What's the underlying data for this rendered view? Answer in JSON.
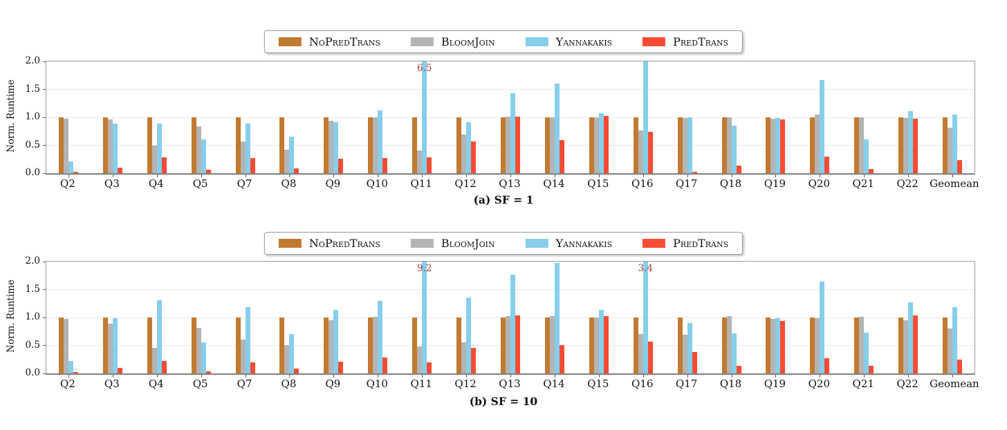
{
  "legend": [
    {
      "label": "NoPredTrans",
      "color": "#C17A30"
    },
    {
      "label": "BloomJoin",
      "color": "#B4B4B4"
    },
    {
      "label": "Yannakakis",
      "color": "#87CEEB"
    },
    {
      "label": "PredTrans",
      "color": "#F74C33"
    }
  ],
  "annotation_color": "#B0413A",
  "chart_data": [
    {
      "type": "bar",
      "title": "(a) SF = 1",
      "ylabel": "Norm. Runtime",
      "ylim": [
        0,
        2.0
      ],
      "yticks": [
        "0.0",
        "0.5",
        "1.0",
        "1.5",
        "2.0"
      ],
      "grid": "horizontal",
      "legend_position": "top-center",
      "categories": [
        "Q2",
        "Q3",
        "Q4",
        "Q5",
        "Q7",
        "Q8",
        "Q9",
        "Q10",
        "Q11",
        "Q12",
        "Q13",
        "Q14",
        "Q15",
        "Q16",
        "Q17",
        "Q18",
        "Q19",
        "Q20",
        "Q21",
        "Q22",
        "Geomean"
      ],
      "series": [
        {
          "name": "NoPredTrans",
          "values": [
            1.0,
            1.0,
            1.0,
            1.0,
            1.0,
            1.0,
            1.0,
            1.0,
            1.0,
            1.0,
            1.0,
            1.0,
            1.0,
            1.0,
            1.0,
            1.0,
            1.0,
            1.0,
            1.0,
            1.0,
            1.0
          ]
        },
        {
          "name": "BloomJoin",
          "values": [
            0.97,
            0.96,
            0.5,
            0.84,
            0.57,
            0.42,
            0.94,
            1.0,
            0.41,
            0.69,
            1.01,
            1.0,
            1.0,
            0.77,
            0.99,
            1.0,
            0.97,
            1.05,
            1.0,
            0.99,
            0.82
          ]
        },
        {
          "name": "Yannakakis",
          "values": [
            0.21,
            0.89,
            0.89,
            0.6,
            0.89,
            0.66,
            0.91,
            1.12,
            6.5,
            0.91,
            1.43,
            1.6,
            1.08,
            2.0,
            1.0,
            0.85,
            0.99,
            1.67,
            0.61,
            1.11,
            1.05
          ]
        },
        {
          "name": "PredTrans",
          "values": [
            0.03,
            0.1,
            0.28,
            0.06,
            0.27,
            0.09,
            0.26,
            0.27,
            0.28,
            0.57,
            1.01,
            0.59,
            1.02,
            0.74,
            0.03,
            0.14,
            0.96,
            0.3,
            0.08,
            0.97,
            0.24
          ]
        }
      ],
      "annotations": [
        {
          "category": "Q11",
          "series": "Yannakakis",
          "text": "6.5"
        }
      ]
    },
    {
      "type": "bar",
      "title": "(b) SF = 10",
      "ylabel": "Norm. Runtime",
      "ylim": [
        0,
        2.0
      ],
      "yticks": [
        "0.0",
        "0.5",
        "1.0",
        "1.5",
        "2.0"
      ],
      "grid": "horizontal",
      "legend_position": "top-center",
      "categories": [
        "Q2",
        "Q3",
        "Q4",
        "Q5",
        "Q7",
        "Q8",
        "Q9",
        "Q10",
        "Q11",
        "Q12",
        "Q13",
        "Q14",
        "Q15",
        "Q16",
        "Q17",
        "Q18",
        "Q19",
        "Q20",
        "Q21",
        "Q22",
        "Geomean"
      ],
      "series": [
        {
          "name": "NoPredTrans",
          "values": [
            1.0,
            1.0,
            1.0,
            1.0,
            1.0,
            1.0,
            1.0,
            1.0,
            1.0,
            1.0,
            1.0,
            1.0,
            1.0,
            1.0,
            1.0,
            1.0,
            1.0,
            1.0,
            1.0,
            1.0,
            1.0
          ]
        },
        {
          "name": "BloomJoin",
          "values": [
            0.97,
            0.89,
            0.46,
            0.82,
            0.61,
            0.51,
            0.95,
            1.01,
            0.48,
            0.55,
            1.02,
            1.03,
            1.0,
            0.71,
            0.69,
            1.02,
            0.97,
            0.99,
            1.01,
            0.95,
            0.8
          ]
        },
        {
          "name": "Yannakakis",
          "values": [
            0.22,
            0.99,
            1.31,
            0.56,
            1.18,
            0.71,
            1.14,
            1.3,
            9.2,
            1.36,
            1.77,
            1.97,
            1.14,
            3.4,
            0.9,
            0.72,
            0.99,
            1.64,
            0.73,
            1.27,
            1.19
          ]
        },
        {
          "name": "PredTrans",
          "values": [
            0.02,
            0.1,
            0.22,
            0.04,
            0.2,
            0.09,
            0.21,
            0.29,
            0.2,
            0.46,
            1.04,
            0.51,
            1.02,
            0.57,
            0.38,
            0.14,
            0.94,
            0.27,
            0.13,
            1.04,
            0.25
          ]
        }
      ],
      "annotations": [
        {
          "category": "Q11",
          "series": "Yannakakis",
          "text": "9.2"
        },
        {
          "category": "Q16",
          "series": "Yannakakis",
          "text": "3.4"
        }
      ]
    }
  ]
}
